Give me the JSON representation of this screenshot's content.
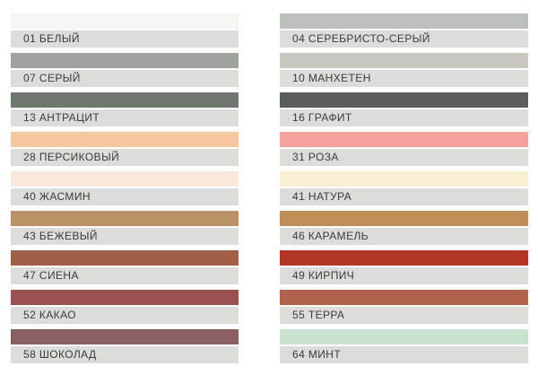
{
  "page": {
    "background_color": "#FFFFFF",
    "label_bar_color": "#DCDCDA",
    "label_text_color": "#3B3B3B"
  },
  "palette": {
    "columns": [
      {
        "side": "left",
        "items": [
          {
            "code": "01",
            "name": "БЕЛЫЙ",
            "label": "01 БЕЛЫЙ",
            "color": "#F5F5F3"
          },
          {
            "code": "07",
            "name": "СЕРЫЙ",
            "label": "07 СЕРЫЙ",
            "color": "#A0A39D"
          },
          {
            "code": "13",
            "name": "АНТРАЦИТ",
            "label": "13 АНТРАЦИТ",
            "color": "#6F766E"
          },
          {
            "code": "28",
            "name": "ПЕРСИКОВЫЙ",
            "label": "28 ПЕРСИКОВЫЙ",
            "color": "#F7C8A0"
          },
          {
            "code": "40",
            "name": "ЖАСМИН",
            "label": "40 ЖАСМИН",
            "color": "#FAE9DB"
          },
          {
            "code": "43",
            "name": "БЕЖЕВЫЙ",
            "label": "43 БЕЖЕВЫЙ",
            "color": "#BC9166"
          },
          {
            "code": "47",
            "name": "СИЕНА",
            "label": "47 СИЕНА",
            "color": "#A05E48"
          },
          {
            "code": "52",
            "name": "КАКАО",
            "label": "52 КАКАО",
            "color": "#9A5150"
          },
          {
            "code": "58",
            "name": "ШОКОЛАД",
            "label": "58 ШОКОЛАД",
            "color": "#8A5F5F"
          }
        ]
      },
      {
        "side": "right",
        "items": [
          {
            "code": "04",
            "name": "СЕРЕБРИСТО-СЕРЫЙ",
            "label": "04 СЕРЕБРИСТО-СЕРЫЙ",
            "color": "#BCBEBA"
          },
          {
            "code": "10",
            "name": "МАНХЕТЕН",
            "label": "10 МАНХЕТЕН",
            "color": "#C7C6BF"
          },
          {
            "code": "16",
            "name": "ГРАФИТ",
            "label": "16 ГРАФИТ",
            "color": "#595D5B"
          },
          {
            "code": "31",
            "name": "РОЗА",
            "label": "31 РОЗА",
            "color": "#F5A19C"
          },
          {
            "code": "41",
            "name": "НАТУРА",
            "label": "41 НАТУРА",
            "color": "#F7F0D1"
          },
          {
            "code": "46",
            "name": "КАРАМЕЛЬ",
            "label": "46 КАРАМЕЛЬ",
            "color": "#BF8D56"
          },
          {
            "code": "49",
            "name": "КИРПИЧ",
            "label": "49 КИРПИЧ",
            "color": "#AE3824"
          },
          {
            "code": "55",
            "name": "ТЕРРА",
            "label": "55 ТЕРРА",
            "color": "#B0634C"
          },
          {
            "code": "64",
            "name": "МИНТ",
            "label": "64 МИНТ",
            "color": "#C7E2CE"
          }
        ]
      }
    ]
  },
  "chart_data": {
    "type": "table",
    "title": "",
    "columns": [
      "code",
      "name",
      "swatch_color"
    ],
    "rows": [
      [
        "01",
        "БЕЛЫЙ",
        "#F5F5F3"
      ],
      [
        "07",
        "СЕРЫЙ",
        "#A0A39D"
      ],
      [
        "13",
        "АНТРАЦИТ",
        "#6F766E"
      ],
      [
        "28",
        "ПЕРСИКОВЫЙ",
        "#F7C8A0"
      ],
      [
        "40",
        "ЖАСМИН",
        "#FAE9DB"
      ],
      [
        "43",
        "БЕЖЕВЫЙ",
        "#BC9166"
      ],
      [
        "47",
        "СИЕНА",
        "#A05E48"
      ],
      [
        "52",
        "КАКАО",
        "#9A5150"
      ],
      [
        "58",
        "ШОКОЛАД",
        "#8A5F5F"
      ],
      [
        "04",
        "СЕРЕБРИСТО-СЕРЫЙ",
        "#BCBEBA"
      ],
      [
        "10",
        "МАНХЕТЕН",
        "#C7C6BF"
      ],
      [
        "16",
        "ГРАФИТ",
        "#595D5B"
      ],
      [
        "31",
        "РОЗА",
        "#F5A19C"
      ],
      [
        "41",
        "НАТУРА",
        "#F7F0D1"
      ],
      [
        "46",
        "КАРАМЕЛЬ",
        "#BF8D56"
      ],
      [
        "49",
        "КИРПИЧ",
        "#AE3824"
      ],
      [
        "55",
        "ТЕРРА",
        "#B0634C"
      ],
      [
        "64",
        "МИНТ",
        "#C7E2CE"
      ]
    ],
    "layout": "two-column swatch legend, swatch bar above gray label bar"
  }
}
